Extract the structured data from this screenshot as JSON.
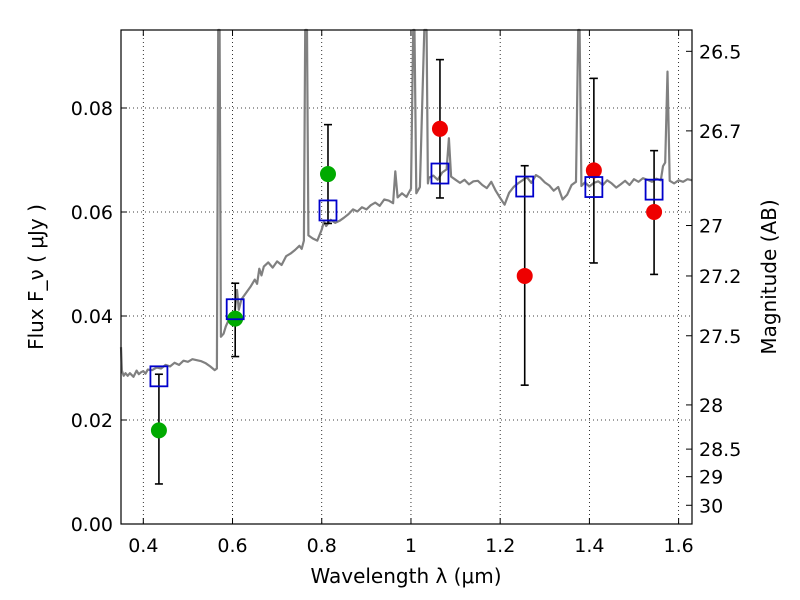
{
  "chart_data": {
    "type": "scatter",
    "xlabel": "Wavelength  λ (μm)",
    "ylabel": "Flux  F_ν  ( μJy )",
    "y2label": "Magnitude (AB)",
    "xlim": [
      0.35,
      1.63
    ],
    "ylim": [
      0.0,
      0.095
    ],
    "xticks": [
      0.4,
      0.6,
      0.8,
      1.0,
      1.2,
      1.4,
      1.6
    ],
    "xtick_labels": [
      "0.4",
      "0.6",
      "0.8",
      "1",
      "1.2",
      "1.4",
      "1.6"
    ],
    "yticks": [
      0.0,
      0.02,
      0.04,
      0.06,
      0.08
    ],
    "ytick_labels": [
      "0.00",
      "0.02",
      "0.04",
      "0.06",
      "0.08"
    ],
    "y2ticks": [
      {
        "label": "26.5",
        "flux": 0.0909
      },
      {
        "label": "26.7",
        "flux": 0.0756
      },
      {
        "label": "27",
        "flux": 0.0574
      },
      {
        "label": "27.2",
        "flux": 0.0477
      },
      {
        "label": "27.5",
        "flux": 0.0362
      },
      {
        "label": "28",
        "flux": 0.0229
      },
      {
        "label": "28.5",
        "flux": 0.0144
      },
      {
        "label": "29",
        "flux": 0.0091
      },
      {
        "label": "30",
        "flux": 0.0036
      }
    ],
    "grid": true,
    "series": [
      {
        "kind": "observed-hst",
        "color": "#00aa00",
        "points": [
          {
            "x": 0.435,
            "y": 0.018,
            "yerr": [
              0.0077,
              0.0288
            ]
          },
          {
            "x": 0.606,
            "y": 0.0395,
            "yerr": [
              0.0322,
              0.0463
            ]
          },
          {
            "x": 0.814,
            "y": 0.0673,
            "yerr": null
          }
        ]
      },
      {
        "kind": "observed-ir",
        "color": "#ee0000",
        "points": [
          {
            "x": 1.065,
            "y": 0.076,
            "yerr": null
          },
          {
            "x": 1.255,
            "y": 0.0477,
            "yerr": [
              0.0267,
              0.0689
            ]
          },
          {
            "x": 1.41,
            "y": 0.068,
            "yerr": [
              0.0502,
              0.0857
            ]
          },
          {
            "x": 1.545,
            "y": 0.06,
            "yerr": [
              0.048,
              0.0718
            ]
          }
        ]
      },
      {
        "kind": "model-synthetic-photometry",
        "color": "#0000cc",
        "marker": "open-square",
        "points": [
          {
            "x": 0.435,
            "y": 0.0284
          },
          {
            "x": 0.606,
            "y": 0.0413
          },
          {
            "x": 0.814,
            "y": 0.0603
          },
          {
            "x": 1.065,
            "y": 0.0674
          },
          {
            "x": 1.255,
            "y": 0.0649
          },
          {
            "x": 1.41,
            "y": 0.0648
          },
          {
            "x": 1.545,
            "y": 0.0643
          }
        ]
      }
    ],
    "extra_errorbars": [
      {
        "x": 0.814,
        "yerr": [
          0.0578,
          0.0768
        ]
      },
      {
        "x": 1.065,
        "yerr": [
          0.0627,
          0.0893
        ]
      }
    ],
    "spectrum": {
      "color": "#808080",
      "points": [
        [
          0.35,
          0.034
        ],
        [
          0.352,
          0.0295
        ],
        [
          0.356,
          0.0285
        ],
        [
          0.36,
          0.029
        ],
        [
          0.365,
          0.0285
        ],
        [
          0.37,
          0.029
        ],
        [
          0.378,
          0.0283
        ],
        [
          0.385,
          0.0295
        ],
        [
          0.39,
          0.0288
        ],
        [
          0.395,
          0.0292
        ],
        [
          0.4,
          0.0294
        ],
        [
          0.405,
          0.0289
        ],
        [
          0.41,
          0.0297
        ],
        [
          0.42,
          0.0296
        ],
        [
          0.43,
          0.0301
        ],
        [
          0.44,
          0.0299
        ],
        [
          0.45,
          0.0306
        ],
        [
          0.46,
          0.0303
        ],
        [
          0.47,
          0.031
        ],
        [
          0.48,
          0.0306
        ],
        [
          0.49,
          0.0314
        ],
        [
          0.5,
          0.0312
        ],
        [
          0.51,
          0.0317
        ],
        [
          0.52,
          0.0315
        ],
        [
          0.53,
          0.0313
        ],
        [
          0.54,
          0.0309
        ],
        [
          0.55,
          0.0303
        ],
        [
          0.56,
          0.0296
        ],
        [
          0.565,
          0.0299
        ],
        [
          0.568,
          0.095
        ],
        [
          0.571,
          0.095
        ],
        [
          0.574,
          0.036
        ],
        [
          0.58,
          0.0366
        ],
        [
          0.585,
          0.038
        ],
        [
          0.59,
          0.039
        ],
        [
          0.595,
          0.0387
        ],
        [
          0.6,
          0.0398
        ],
        [
          0.605,
          0.0409
        ],
        [
          0.61,
          0.045
        ],
        [
          0.614,
          0.0412
        ],
        [
          0.62,
          0.0432
        ],
        [
          0.63,
          0.0444
        ],
        [
          0.64,
          0.0456
        ],
        [
          0.65,
          0.047
        ],
        [
          0.655,
          0.0462
        ],
        [
          0.66,
          0.0491
        ],
        [
          0.665,
          0.0478
        ],
        [
          0.67,
          0.0495
        ],
        [
          0.68,
          0.0503
        ],
        [
          0.69,
          0.0493
        ],
        [
          0.7,
          0.0505
        ],
        [
          0.71,
          0.0498
        ],
        [
          0.72,
          0.0515
        ],
        [
          0.73,
          0.052
        ],
        [
          0.74,
          0.0527
        ],
        [
          0.75,
          0.0535
        ],
        [
          0.755,
          0.0529
        ],
        [
          0.76,
          0.0545
        ],
        [
          0.763,
          0.095
        ],
        [
          0.767,
          0.095
        ],
        [
          0.77,
          0.0555
        ],
        [
          0.78,
          0.0549
        ],
        [
          0.79,
          0.0545
        ],
        [
          0.8,
          0.0566
        ],
        [
          0.805,
          0.0582
        ],
        [
          0.81,
          0.0573
        ],
        [
          0.82,
          0.0585
        ],
        [
          0.83,
          0.0579
        ],
        [
          0.84,
          0.0583
        ],
        [
          0.85,
          0.0589
        ],
        [
          0.86,
          0.0596
        ],
        [
          0.87,
          0.0605
        ],
        [
          0.88,
          0.0601
        ],
        [
          0.89,
          0.0609
        ],
        [
          0.9,
          0.0605
        ],
        [
          0.91,
          0.0613
        ],
        [
          0.92,
          0.0618
        ],
        [
          0.93,
          0.0612
        ],
        [
          0.94,
          0.0624
        ],
        [
          0.95,
          0.0622
        ],
        [
          0.96,
          0.0617
        ],
        [
          0.965,
          0.0678
        ],
        [
          0.97,
          0.0628
        ],
        [
          0.98,
          0.0636
        ],
        [
          0.99,
          0.0629
        ],
        [
          1.0,
          0.0645
        ],
        [
          1.005,
          0.095
        ],
        [
          1.008,
          0.095
        ],
        [
          1.012,
          0.0636
        ],
        [
          1.02,
          0.0648
        ],
        [
          1.03,
          0.095
        ],
        [
          1.035,
          0.095
        ],
        [
          1.038,
          0.0655
        ],
        [
          1.04,
          0.0666
        ],
        [
          1.05,
          0.067
        ],
        [
          1.06,
          0.0662
        ],
        [
          1.07,
          0.0676
        ],
        [
          1.08,
          0.0682
        ],
        [
          1.085,
          0.0742
        ],
        [
          1.09,
          0.0668
        ],
        [
          1.1,
          0.0662
        ],
        [
          1.11,
          0.0656
        ],
        [
          1.12,
          0.0662
        ],
        [
          1.13,
          0.0653
        ],
        [
          1.14,
          0.0659
        ],
        [
          1.15,
          0.066
        ],
        [
          1.16,
          0.0652
        ],
        [
          1.17,
          0.0646
        ],
        [
          1.18,
          0.0658
        ],
        [
          1.19,
          0.0641
        ],
        [
          1.2,
          0.0627
        ],
        [
          1.21,
          0.0614
        ],
        [
          1.22,
          0.0637
        ],
        [
          1.23,
          0.0648
        ],
        [
          1.24,
          0.0655
        ],
        [
          1.25,
          0.0661
        ],
        [
          1.26,
          0.0667
        ],
        [
          1.27,
          0.0656
        ],
        [
          1.28,
          0.0671
        ],
        [
          1.29,
          0.0666
        ],
        [
          1.3,
          0.0657
        ],
        [
          1.31,
          0.0651
        ],
        [
          1.32,
          0.0641
        ],
        [
          1.33,
          0.0648
        ],
        [
          1.34,
          0.0624
        ],
        [
          1.35,
          0.0633
        ],
        [
          1.36,
          0.0652
        ],
        [
          1.37,
          0.0658
        ],
        [
          1.375,
          0.095
        ],
        [
          1.378,
          0.095
        ],
        [
          1.382,
          0.065
        ],
        [
          1.39,
          0.0657
        ],
        [
          1.4,
          0.0649
        ],
        [
          1.41,
          0.0656
        ],
        [
          1.42,
          0.0659
        ],
        [
          1.43,
          0.0652
        ],
        [
          1.44,
          0.0661
        ],
        [
          1.45,
          0.0655
        ],
        [
          1.46,
          0.0647
        ],
        [
          1.47,
          0.0653
        ],
        [
          1.48,
          0.066
        ],
        [
          1.49,
          0.0652
        ],
        [
          1.5,
          0.0663
        ],
        [
          1.51,
          0.0658
        ],
        [
          1.52,
          0.0665
        ],
        [
          1.53,
          0.0662
        ],
        [
          1.54,
          0.0658
        ],
        [
          1.55,
          0.0664
        ],
        [
          1.56,
          0.0661
        ],
        [
          1.565,
          0.0688
        ],
        [
          1.57,
          0.0695
        ],
        [
          1.575,
          0.087
        ],
        [
          1.58,
          0.066
        ],
        [
          1.59,
          0.0655
        ],
        [
          1.6,
          0.0661
        ],
        [
          1.61,
          0.0658
        ],
        [
          1.62,
          0.0663
        ],
        [
          1.63,
          0.0661
        ]
      ]
    }
  }
}
